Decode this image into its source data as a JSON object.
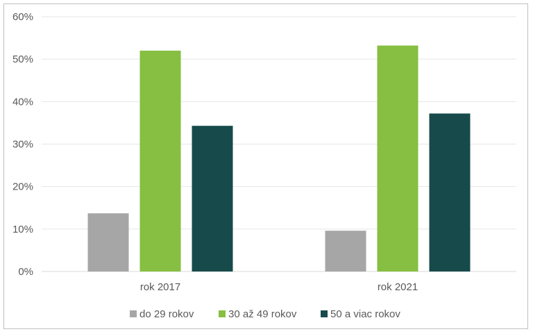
{
  "chart_data": {
    "type": "bar",
    "categories": [
      "rok 2017",
      "rok 2021"
    ],
    "series": [
      {
        "name": "do 29 rokov",
        "color": "#a6a6a6",
        "values": [
          13.7,
          9.6
        ]
      },
      {
        "name": "30 až 49 rokov",
        "color": "#86bf41",
        "values": [
          52.0,
          53.2
        ]
      },
      {
        "name": "50 a viac rokov",
        "color": "#174b4b",
        "values": [
          34.3,
          37.2
        ]
      }
    ],
    "ylim": [
      0,
      60
    ],
    "yticks": [
      0,
      10,
      20,
      30,
      40,
      50,
      60
    ],
    "ytick_labels": [
      "0%",
      "10%",
      "20%",
      "30%",
      "40%",
      "50%",
      "60%"
    ],
    "grid": true,
    "legend_position": "bottom"
  }
}
